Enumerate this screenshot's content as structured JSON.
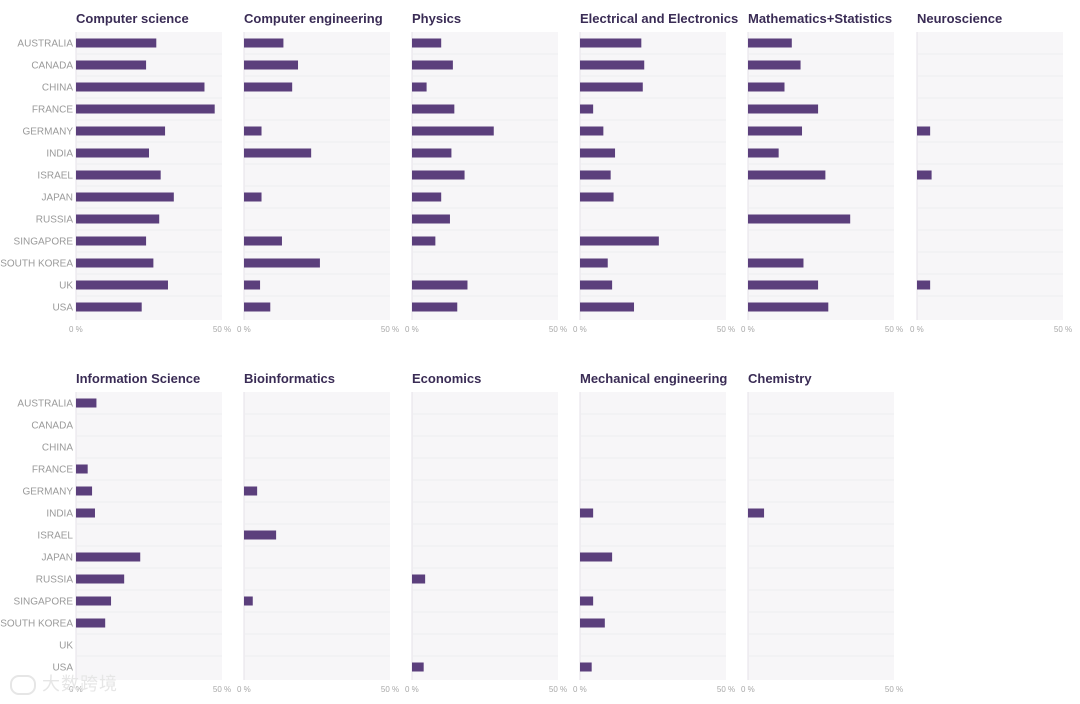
{
  "chart_data": {
    "type": "bar",
    "orientation": "horizontal",
    "layout": "small-multiples",
    "categories": [
      "AUSTRALIA",
      "CANADA",
      "CHINA",
      "FRANCE",
      "GERMANY",
      "INDIA",
      "ISRAEL",
      "JAPAN",
      "RUSSIA",
      "SINGAPORE",
      "SOUTH KOREA",
      "UK",
      "USA"
    ],
    "xlim": [
      0,
      50
    ],
    "x_ticks": [
      "0 %",
      "50 %"
    ],
    "bar_color": "#5b3f7c",
    "panel_bg": "#f7f6f8",
    "title_color": "#3a2c55",
    "panels": [
      {
        "title": "Computer science",
        "values": [
          27.5,
          24,
          44,
          47.5,
          30.5,
          25,
          29,
          33.5,
          28.5,
          24,
          26.5,
          31.5,
          22.5
        ]
      },
      {
        "title": "Computer engineering",
        "values": [
          13.5,
          18.5,
          16.5,
          0,
          6,
          23,
          0,
          6,
          0,
          13,
          26,
          5.5,
          9
        ]
      },
      {
        "title": "Physics",
        "values": [
          10,
          14,
          5,
          14.5,
          28,
          13.5,
          18,
          10,
          13,
          8,
          0,
          19,
          15.5
        ]
      },
      {
        "title": "Electrical and Electronics",
        "values": [
          21,
          22,
          21.5,
          4.5,
          8,
          12,
          10.5,
          11.5,
          0,
          27,
          9.5,
          11,
          18.5
        ]
      },
      {
        "title": "Mathematics+Statistics",
        "values": [
          15,
          18,
          12.5,
          24,
          18.5,
          10.5,
          26.5,
          0,
          35,
          0,
          19,
          24,
          27.5
        ]
      },
      {
        "title": "Neuroscience",
        "values": [
          0,
          0,
          0,
          0,
          4.5,
          0,
          5,
          0,
          0,
          0,
          0,
          4.5,
          0
        ]
      },
      {
        "title": "Information Science",
        "values": [
          7,
          0,
          0,
          4,
          5.5,
          6.5,
          0,
          22,
          16.5,
          12,
          10,
          0,
          0
        ]
      },
      {
        "title": "Bioinformatics",
        "values": [
          0,
          0,
          0,
          0,
          4.5,
          0,
          11,
          0,
          0,
          3,
          0,
          0,
          0
        ]
      },
      {
        "title": "Economics",
        "values": [
          0,
          0,
          0,
          0,
          0,
          0,
          0,
          0,
          4.5,
          0,
          0,
          0,
          4
        ]
      },
      {
        "title": "Mechanical engineering",
        "values": [
          0,
          0,
          0,
          0,
          0,
          4.5,
          0,
          11,
          0,
          4.5,
          8.5,
          0,
          4
        ]
      },
      {
        "title": "Chemistry",
        "values": [
          0,
          0,
          0,
          0,
          0,
          5.5,
          0,
          0,
          0,
          0,
          0,
          0,
          0
        ]
      }
    ]
  },
  "watermark": {
    "text": "大数跨境",
    "logo_icon": "ying-logo-icon"
  }
}
